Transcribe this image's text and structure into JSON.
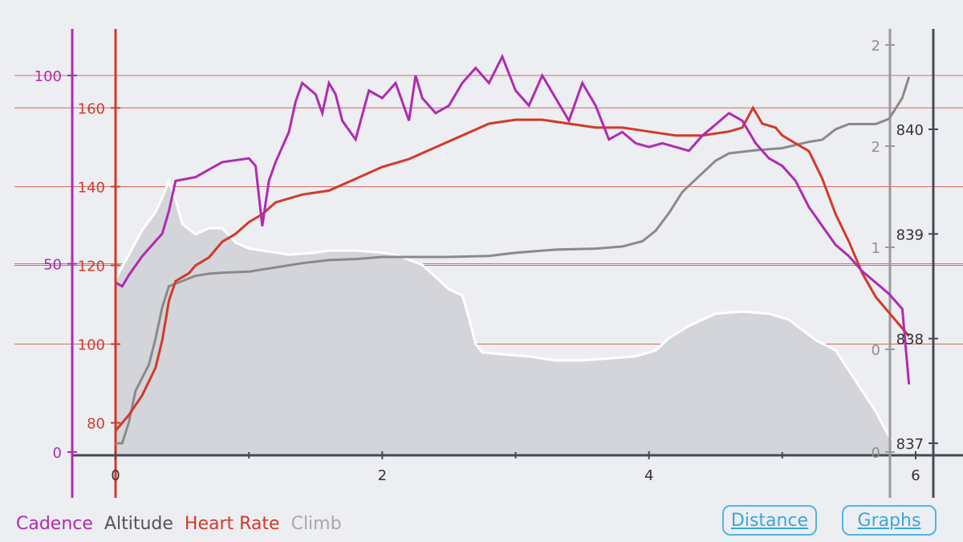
{
  "legend": [
    {
      "label": "Cadence",
      "color": "#b02bb0"
    },
    {
      "label": "Altitude",
      "color": "#555555"
    },
    {
      "label": "Heart Rate",
      "color": "#d23a28"
    },
    {
      "label": "Climb",
      "color": "#a9a9a9"
    }
  ],
  "buttons": {
    "distance_label": "Distance",
    "graphs_label": "Graphs"
  },
  "colors": {
    "cadence": "#b02bb0",
    "heart_rate": "#d23a28",
    "altitude": "#8a8a8a",
    "climb_axis": "#9a9a9a",
    "climb_fill": "#d3d5da",
    "climb_edge": "#ffffff",
    "grid": "#d46a66",
    "axis": "#444b55",
    "background": "#eceef2"
  },
  "chart_data": {
    "type": "line",
    "x": {
      "min": 0,
      "max": 6,
      "ticks": [
        "0",
        "2",
        "4",
        "6"
      ],
      "minor_ticks": [
        1,
        3,
        5
      ]
    },
    "axes": {
      "cadence": {
        "min": 0,
        "max": 100,
        "ticks": [
          "0",
          "50",
          "100"
        ]
      },
      "heart_rate": {
        "min": 74,
        "max": 166,
        "ticks": [
          "80",
          "100",
          "120",
          "140",
          "160"
        ]
      },
      "climb": {
        "min": 0,
        "max": 2,
        "ticks": [
          "0",
          "0",
          "1",
          "2",
          "2"
        ]
      },
      "altitude": {
        "min": 837,
        "max": 840,
        "ticks": [
          "837",
          "838",
          "839",
          "840"
        ]
      }
    },
    "series": [
      {
        "name": "Climb",
        "axis": "climb",
        "points": [
          [
            0,
            0.85
          ],
          [
            0.1,
            0.97
          ],
          [
            0.2,
            1.09
          ],
          [
            0.3,
            1.18
          ],
          [
            0.35,
            1.25
          ],
          [
            0.4,
            1.33
          ],
          [
            0.45,
            1.24
          ],
          [
            0.5,
            1.12
          ],
          [
            0.6,
            1.07
          ],
          [
            0.7,
            1.1
          ],
          [
            0.8,
            1.1
          ],
          [
            0.9,
            1.03
          ],
          [
            1.0,
            1.0
          ],
          [
            1.1,
            0.99
          ],
          [
            1.3,
            0.97
          ],
          [
            1.5,
            0.98
          ],
          [
            1.6,
            0.99
          ],
          [
            1.8,
            0.99
          ],
          [
            2.0,
            0.98
          ],
          [
            2.1,
            0.97
          ],
          [
            2.3,
            0.92
          ],
          [
            2.4,
            0.86
          ],
          [
            2.5,
            0.8
          ],
          [
            2.6,
            0.77
          ],
          [
            2.65,
            0.66
          ],
          [
            2.7,
            0.53
          ],
          [
            2.75,
            0.49
          ],
          [
            2.9,
            0.48
          ],
          [
            3.1,
            0.47
          ],
          [
            3.3,
            0.45
          ],
          [
            3.5,
            0.45
          ],
          [
            3.7,
            0.46
          ],
          [
            3.9,
            0.47
          ],
          [
            4.05,
            0.5
          ],
          [
            4.15,
            0.56
          ],
          [
            4.3,
            0.62
          ],
          [
            4.5,
            0.68
          ],
          [
            4.7,
            0.69
          ],
          [
            4.9,
            0.68
          ],
          [
            5.05,
            0.65
          ],
          [
            5.15,
            0.6
          ],
          [
            5.25,
            0.55
          ],
          [
            5.4,
            0.5
          ],
          [
            5.5,
            0.4
          ],
          [
            5.6,
            0.3
          ],
          [
            5.7,
            0.2
          ],
          [
            5.78,
            0.1
          ],
          [
            5.82,
            0.06
          ]
        ]
      },
      {
        "name": "Altitude",
        "axis": "altitude",
        "points": [
          [
            0,
            837.0
          ],
          [
            0.05,
            837.0
          ],
          [
            0.1,
            837.2
          ],
          [
            0.15,
            837.5
          ],
          [
            0.25,
            837.75
          ],
          [
            0.3,
            838.0
          ],
          [
            0.35,
            838.3
          ],
          [
            0.4,
            838.5
          ],
          [
            0.5,
            838.55
          ],
          [
            0.6,
            838.6
          ],
          [
            0.7,
            838.62
          ],
          [
            0.8,
            838.63
          ],
          [
            1.0,
            838.64
          ],
          [
            1.2,
            838.68
          ],
          [
            1.4,
            838.72
          ],
          [
            1.6,
            838.75
          ],
          [
            1.8,
            838.76
          ],
          [
            2.0,
            838.78
          ],
          [
            2.5,
            838.78
          ],
          [
            2.8,
            838.79
          ],
          [
            3.0,
            838.82
          ],
          [
            3.3,
            838.85
          ],
          [
            3.6,
            838.86
          ],
          [
            3.8,
            838.88
          ],
          [
            3.95,
            838.93
          ],
          [
            4.05,
            839.03
          ],
          [
            4.15,
            839.2
          ],
          [
            4.25,
            839.4
          ],
          [
            4.4,
            839.58
          ],
          [
            4.5,
            839.7
          ],
          [
            4.6,
            839.77
          ],
          [
            4.8,
            839.8
          ],
          [
            5.0,
            839.82
          ],
          [
            5.2,
            839.88
          ],
          [
            5.3,
            839.9
          ],
          [
            5.4,
            840.0
          ],
          [
            5.5,
            840.05
          ],
          [
            5.7,
            840.05
          ],
          [
            5.8,
            840.1
          ],
          [
            5.9,
            840.3
          ],
          [
            5.95,
            840.5
          ]
        ]
      },
      {
        "name": "Heart Rate",
        "axis": "heart_rate",
        "points": [
          [
            0,
            78
          ],
          [
            0.05,
            80
          ],
          [
            0.1,
            82
          ],
          [
            0.2,
            87
          ],
          [
            0.3,
            94
          ],
          [
            0.35,
            101
          ],
          [
            0.4,
            111
          ],
          [
            0.45,
            116
          ],
          [
            0.55,
            118
          ],
          [
            0.6,
            120
          ],
          [
            0.7,
            122
          ],
          [
            0.8,
            126
          ],
          [
            0.9,
            128
          ],
          [
            1.0,
            131
          ],
          [
            1.1,
            133
          ],
          [
            1.2,
            136
          ],
          [
            1.4,
            138
          ],
          [
            1.6,
            139
          ],
          [
            1.8,
            142
          ],
          [
            2.0,
            145
          ],
          [
            2.2,
            147
          ],
          [
            2.4,
            150
          ],
          [
            2.6,
            153
          ],
          [
            2.8,
            156
          ],
          [
            3.0,
            157
          ],
          [
            3.2,
            157
          ],
          [
            3.4,
            156
          ],
          [
            3.6,
            155
          ],
          [
            3.8,
            155
          ],
          [
            4.0,
            154
          ],
          [
            4.2,
            153
          ],
          [
            4.4,
            153
          ],
          [
            4.6,
            154
          ],
          [
            4.7,
            155
          ],
          [
            4.78,
            160
          ],
          [
            4.85,
            156
          ],
          [
            4.95,
            155
          ],
          [
            5.0,
            153
          ],
          [
            5.1,
            151
          ],
          [
            5.2,
            149
          ],
          [
            5.3,
            142
          ],
          [
            5.4,
            133
          ],
          [
            5.5,
            126
          ],
          [
            5.6,
            118
          ],
          [
            5.7,
            112
          ],
          [
            5.8,
            108
          ],
          [
            5.9,
            104
          ],
          [
            5.95,
            102
          ]
        ]
      },
      {
        "name": "Cadence",
        "axis": "cadence",
        "points": [
          [
            0,
            45
          ],
          [
            0.05,
            44
          ],
          [
            0.1,
            47
          ],
          [
            0.2,
            52
          ],
          [
            0.3,
            56
          ],
          [
            0.35,
            58
          ],
          [
            0.4,
            64
          ],
          [
            0.45,
            72
          ],
          [
            0.6,
            73
          ],
          [
            0.8,
            77
          ],
          [
            1.0,
            78
          ],
          [
            1.05,
            76
          ],
          [
            1.1,
            60
          ],
          [
            1.15,
            72
          ],
          [
            1.2,
            77
          ],
          [
            1.3,
            85
          ],
          [
            1.35,
            93
          ],
          [
            1.4,
            98
          ],
          [
            1.5,
            95
          ],
          [
            1.55,
            90
          ],
          [
            1.6,
            98
          ],
          [
            1.65,
            95
          ],
          [
            1.7,
            88
          ],
          [
            1.8,
            83
          ],
          [
            1.9,
            96
          ],
          [
            2.0,
            94
          ],
          [
            2.1,
            98
          ],
          [
            2.2,
            88
          ],
          [
            2.25,
            100
          ],
          [
            2.3,
            94
          ],
          [
            2.4,
            90
          ],
          [
            2.5,
            92
          ],
          [
            2.6,
            98
          ],
          [
            2.7,
            102
          ],
          [
            2.8,
            98
          ],
          [
            2.9,
            105
          ],
          [
            3.0,
            96
          ],
          [
            3.1,
            92
          ],
          [
            3.2,
            100
          ],
          [
            3.3,
            94
          ],
          [
            3.4,
            88
          ],
          [
            3.5,
            98
          ],
          [
            3.6,
            92
          ],
          [
            3.7,
            83
          ],
          [
            3.8,
            85
          ],
          [
            3.9,
            82
          ],
          [
            4.0,
            81
          ],
          [
            4.1,
            82
          ],
          [
            4.2,
            81
          ],
          [
            4.3,
            80
          ],
          [
            4.4,
            84
          ],
          [
            4.5,
            87
          ],
          [
            4.6,
            90
          ],
          [
            4.7,
            88
          ],
          [
            4.8,
            82
          ],
          [
            4.9,
            78
          ],
          [
            5.0,
            76
          ],
          [
            5.1,
            72
          ],
          [
            5.2,
            65
          ],
          [
            5.3,
            60
          ],
          [
            5.4,
            55
          ],
          [
            5.5,
            52
          ],
          [
            5.6,
            48
          ],
          [
            5.7,
            45
          ],
          [
            5.8,
            42
          ],
          [
            5.9,
            38
          ],
          [
            5.95,
            18
          ]
        ]
      }
    ]
  }
}
